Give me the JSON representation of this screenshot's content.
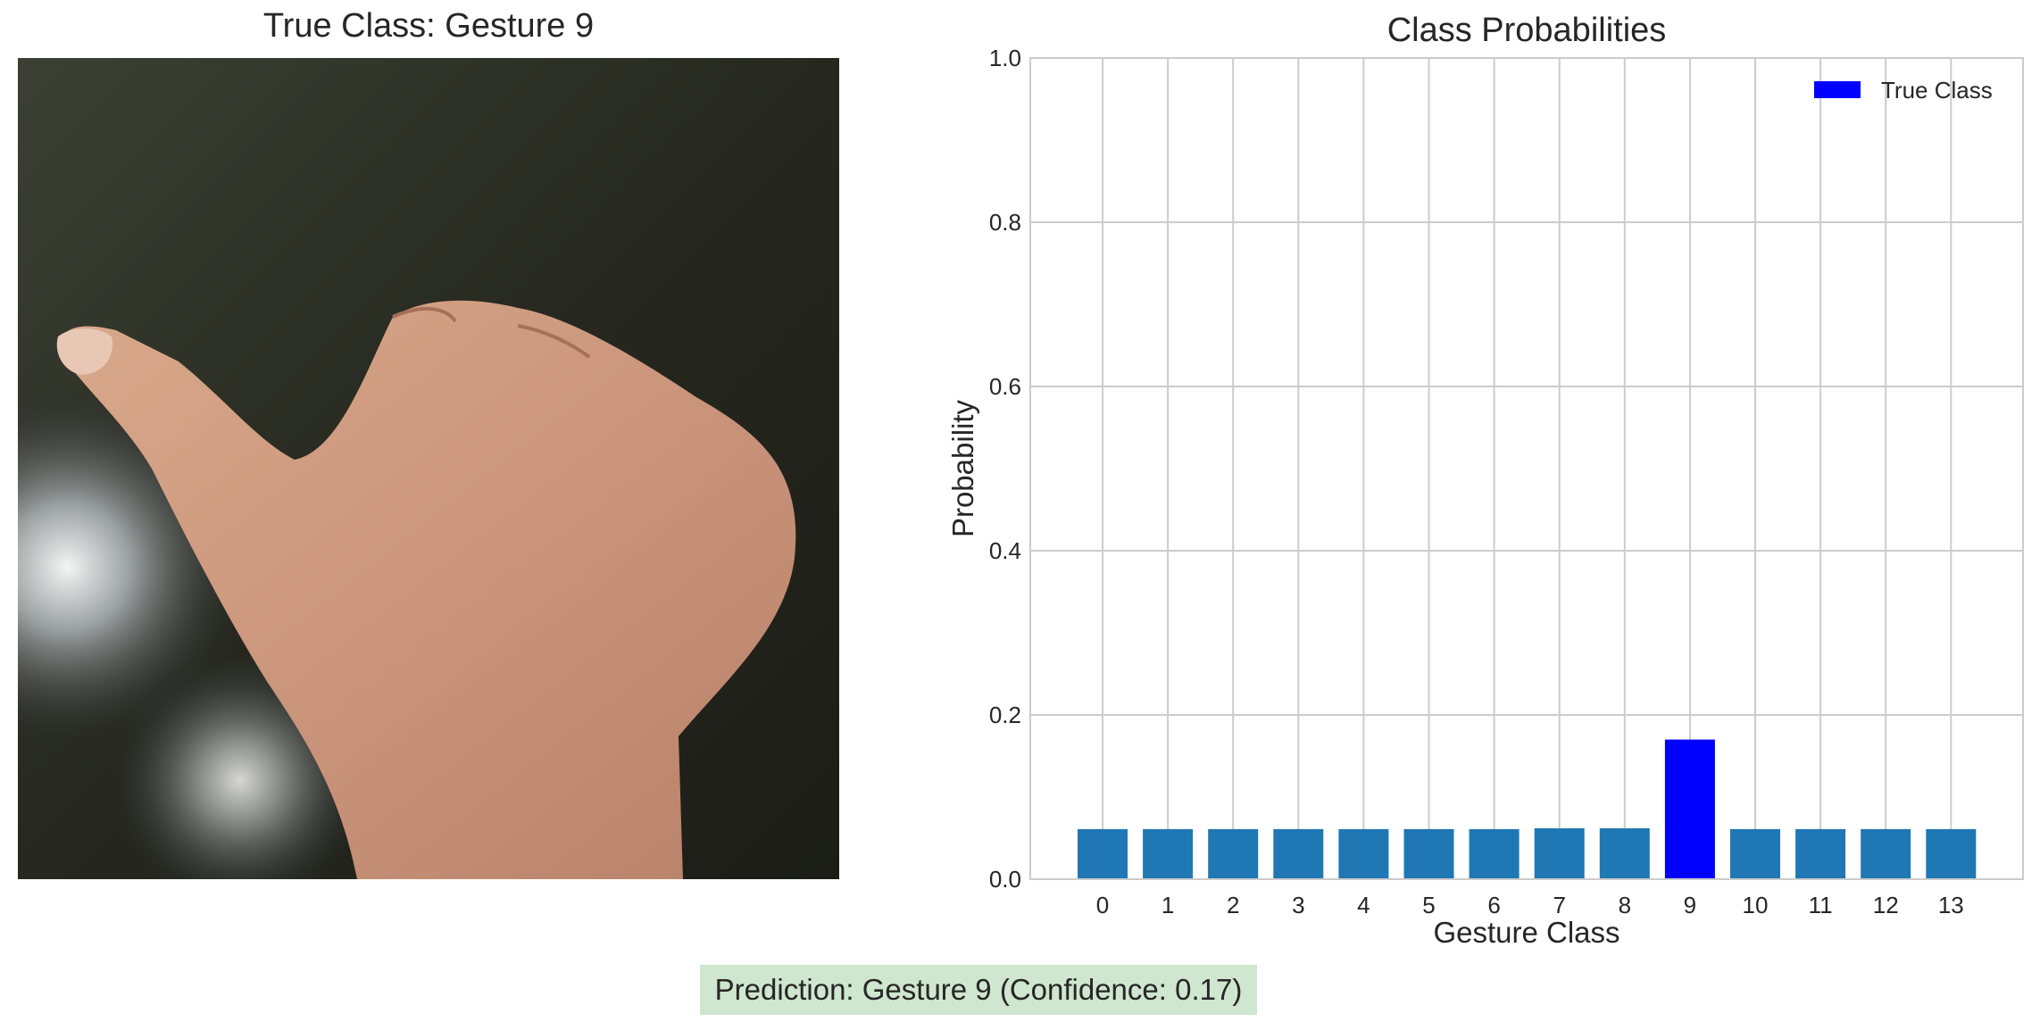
{
  "figure": {
    "left_title": "True Class: Gesture 9",
    "prediction_text": "Prediction: Gesture 9 (Confidence: 0.17)"
  },
  "colors": {
    "bar": "#1f77b4",
    "highlight": "#0000ff",
    "grid": "#cccccc",
    "prediction_bg": "#cfe6cf"
  },
  "chart_data": {
    "type": "bar",
    "title": "Class Probabilities",
    "xlabel": "Gesture Class",
    "ylabel": "Probability",
    "categories": [
      "0",
      "1",
      "2",
      "3",
      "4",
      "5",
      "6",
      "7",
      "8",
      "9",
      "10",
      "11",
      "12",
      "13"
    ],
    "values": [
      0.061,
      0.061,
      0.061,
      0.061,
      0.061,
      0.061,
      0.061,
      0.062,
      0.062,
      0.17,
      0.061,
      0.061,
      0.061,
      0.061
    ],
    "highlight_index": 9,
    "ylim": [
      0,
      1.0
    ],
    "yticks": [
      0.0,
      0.2,
      0.4,
      0.6,
      0.8,
      1.0
    ],
    "ytick_labels": [
      "0.0",
      "0.2",
      "0.4",
      "0.6",
      "0.8",
      "1.0"
    ],
    "legend": {
      "label": "True Class",
      "placement": "top-right"
    },
    "grid": true
  }
}
